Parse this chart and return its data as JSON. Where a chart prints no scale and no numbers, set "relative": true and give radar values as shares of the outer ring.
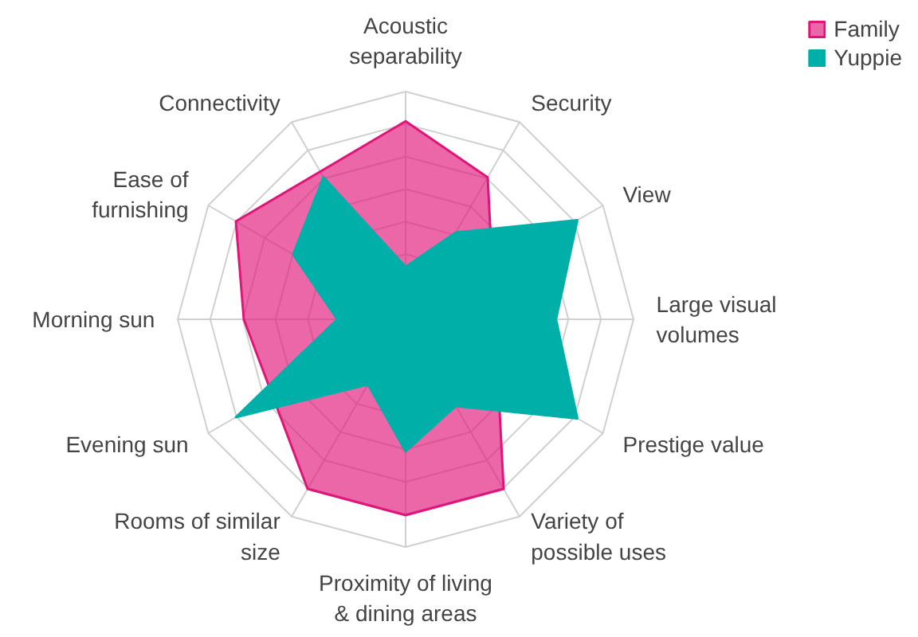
{
  "chart_data": {
    "type": "radar",
    "relative": true,
    "legend": "top right",
    "categories": [
      "Acoustic\nseparability",
      "Security",
      "View",
      "Large visual\nvolumes",
      "Prestige value",
      "Variety of\npossible uses",
      "Proximity of living\n& dining areas",
      "Rooms of similar\nsize",
      "Evening sun",
      "Morning sun",
      "Ease of\nfurnishing",
      "Connectivity"
    ],
    "series": [
      {
        "name": "Family",
        "color": "#e0157a",
        "values": [
          0.87,
          0.72,
          null,
          null,
          null,
          0.86,
          0.86,
          0.86,
          null,
          0.71,
          0.86,
          null
        ]
      },
      {
        "name": "Yuppie",
        "color": "#00b0a8",
        "values": [
          0.23,
          0.44,
          0.87,
          0.66,
          0.87,
          0.44,
          0.58,
          0.33,
          0.86,
          0.3,
          0.57,
          0.72
        ]
      }
    ]
  }
}
